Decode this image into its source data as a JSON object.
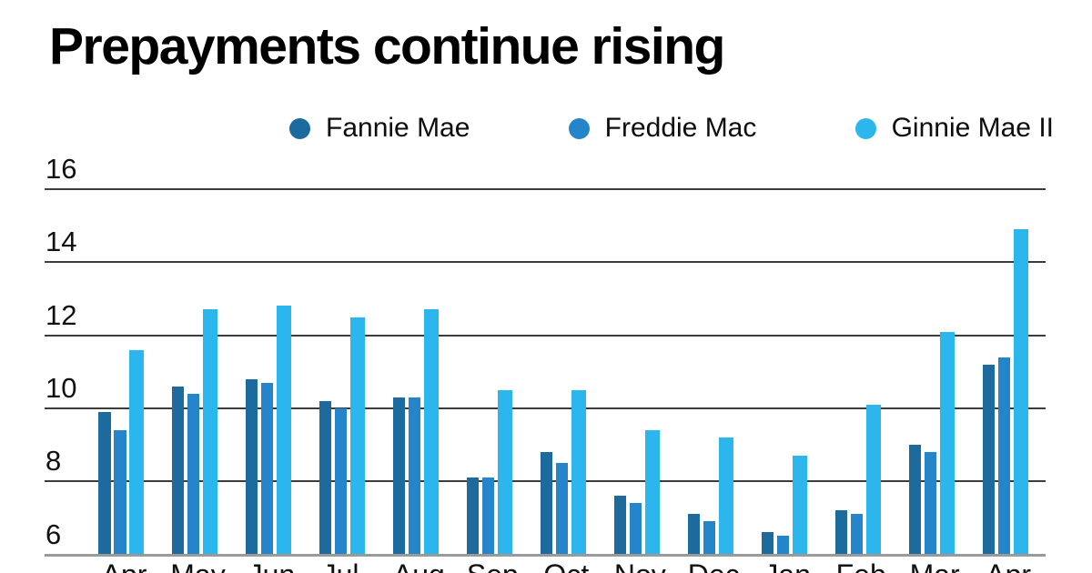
{
  "title": "Prepayments continue rising",
  "legend": [
    {
      "label": "Fannie Mae",
      "color": "#1d6a9e"
    },
    {
      "label": "Freddie Mac",
      "color": "#2585cb"
    },
    {
      "label": "Ginnie Mae II",
      "color": "#2cb6ee"
    }
  ],
  "chart_data": {
    "type": "bar",
    "title": "Prepayments continue rising",
    "categories": [
      "Apr",
      "May",
      "Jun",
      "Jul-",
      "Aug",
      "Sep",
      "Oct",
      "Nov",
      "Dec",
      "Jan",
      "Feb",
      "Mar",
      "Apr"
    ],
    "series": [
      {
        "name": "Fannie Mae",
        "color": "#1d6a9e",
        "values": [
          9.9,
          10.6,
          10.8,
          10.2,
          10.3,
          8.1,
          8.8,
          7.6,
          7.1,
          6.6,
          7.2,
          9.0,
          11.2
        ]
      },
      {
        "name": "Freddie Mac",
        "color": "#2585cb",
        "values": [
          9.4,
          10.4,
          10.7,
          10.0,
          10.3,
          8.1,
          8.5,
          7.4,
          6.9,
          6.5,
          7.1,
          8.8,
          11.4
        ]
      },
      {
        "name": "Ginnie Mae II",
        "color": "#2cb6ee",
        "values": [
          11.6,
          12.7,
          12.8,
          12.5,
          12.7,
          10.5,
          10.5,
          9.4,
          9.2,
          8.7,
          10.1,
          12.1,
          14.9
        ]
      }
    ],
    "xlabel": "",
    "ylabel": "",
    "y_ticks": [
      16,
      14,
      12,
      10,
      8,
      6
    ],
    "ylim": [
      6,
      16
    ],
    "grid": true,
    "legend_position": "top"
  },
  "colors": {
    "gridline": "#3c3c3c",
    "baseline": "#9a9a9a",
    "text": "#111111",
    "title": "#000000"
  }
}
